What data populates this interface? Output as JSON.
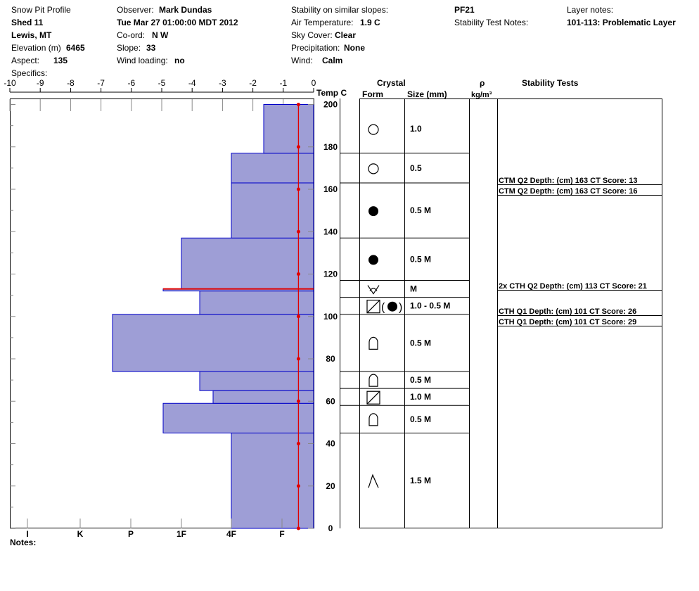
{
  "header": {
    "title": "Snow Pit Profile",
    "location": "Shed 11",
    "region": "Lewis, MT",
    "elevation_label": "Elevation (m)",
    "elevation": "6465",
    "aspect_label": "Aspect:",
    "aspect": "135",
    "specifics_label": "Specifics:",
    "observer_label": "Observer:",
    "observer": "Mark Dundas",
    "datetime": "Tue Mar 27 01:00:00 MDT 2012",
    "coord_label": "Co-ord:",
    "coord": "N  W",
    "slope_label": "Slope:",
    "slope": "33",
    "wind_loading_label": "Wind loading:",
    "wind_loading": "no",
    "stability_similar_label": "Stability on similar slopes:",
    "air_temp_label": "Air Temperature:",
    "air_temp": "1.9 C",
    "sky_label": "Sky Cover:",
    "sky": "Clear",
    "precip_label": "Precipitation:",
    "precip": "None",
    "wind_label": "Wind:",
    "wind": "Calm",
    "pit_id": "PF21",
    "stability_notes_label": "Stability Test Notes:",
    "layer_notes_label": "Layer notes:",
    "layer_notes": "101-113: Problematic Layer"
  },
  "columns": {
    "temp": "Temp C",
    "crystal": "Crystal",
    "form": "Form",
    "size": "Size (mm)",
    "rho": "ρ",
    "rho_units": "kg/m³",
    "stability": "Stability Tests"
  },
  "notes_label": "Notes:",
  "chart_data": {
    "type": "snow-profile",
    "temperature_axis": {
      "ticks": [
        -10,
        -9,
        -8,
        -7,
        -6,
        -5,
        -4,
        -3,
        -2,
        -1,
        0
      ],
      "range": [
        -10,
        0
      ]
    },
    "height_axis": {
      "ticks": [
        0,
        20,
        40,
        60,
        80,
        100,
        120,
        140,
        160,
        180,
        200
      ],
      "range": [
        0,
        200
      ],
      "unit": "cm"
    },
    "hardness_axis": {
      "scale": [
        "F",
        "4F",
        "1F",
        "P",
        "K",
        "I"
      ],
      "labels": [
        "I",
        "K",
        "P",
        "1F",
        "4F",
        "F"
      ]
    },
    "hardness_profile": [
      {
        "bottom": 0,
        "top": 45,
        "hardness": "4F"
      },
      {
        "bottom": 45,
        "top": 59,
        "hardness": "1F+"
      },
      {
        "bottom": 59,
        "top": 65,
        "hardness": "4F+"
      },
      {
        "bottom": 65,
        "top": 74,
        "hardness": "1F-"
      },
      {
        "bottom": 74,
        "top": 101,
        "hardness": "P+"
      },
      {
        "bottom": 101,
        "top": 112,
        "hardness": "1F-"
      },
      {
        "bottom": 112,
        "top": 113,
        "hardness": "1F+"
      },
      {
        "bottom": 113,
        "top": 137,
        "hardness": "1F"
      },
      {
        "bottom": 137,
        "top": 163,
        "hardness": "4F"
      },
      {
        "bottom": 163,
        "top": 177,
        "hardness": "4F"
      },
      {
        "bottom": 177,
        "top": 200,
        "hardness": "F+"
      }
    ],
    "temperature_profile": {
      "depth": [
        0,
        20,
        40,
        60,
        80,
        100,
        120,
        140,
        160,
        180,
        200
      ],
      "temp": [
        -0.5,
        -0.5,
        -0.5,
        -0.5,
        -0.5,
        -0.5,
        -0.5,
        -0.5,
        -0.5,
        -0.5,
        -0.5
      ]
    },
    "problem_layer_height": 113,
    "layers": [
      {
        "bottom": 177,
        "top": 200,
        "form": "circle-open",
        "size": "1.0"
      },
      {
        "bottom": 163,
        "top": 177,
        "form": "circle-open",
        "size": "0.5"
      },
      {
        "bottom": 137,
        "top": 163,
        "form": "circle-filled",
        "size": "0.5 M"
      },
      {
        "bottom": 117,
        "top": 137,
        "form": "circle-filled",
        "size": "0.5 M"
      },
      {
        "bottom": 109,
        "top": 117,
        "form": "surface-hoar",
        "size": "M"
      },
      {
        "bottom": 101,
        "top": 109,
        "form": "square-circle",
        "size": "1.0 - 0.5 M"
      },
      {
        "bottom": 74,
        "top": 101,
        "form": "arch",
        "size": "0.5 M"
      },
      {
        "bottom": 66,
        "top": 74,
        "form": "arch",
        "size": "0.5 M"
      },
      {
        "bottom": 58,
        "top": 66,
        "form": "square",
        "size": "1.0 M"
      },
      {
        "bottom": 45,
        "top": 58,
        "form": "arch",
        "size": "0.5 M"
      },
      {
        "bottom": 0,
        "top": 45,
        "form": "depth-hoar",
        "size": "1.5 M"
      }
    ],
    "stability_tests": [
      "CTM Q2 Depth: (cm) 163 CT Score: 13",
      "CTM Q2 Depth: (cm) 163 CT Score: 16",
      "2x CTH Q2 Depth: (cm) 113 CT Score: 21",
      "CTH Q1 Depth: (cm) 101 CT Score: 26",
      "CTH Q1 Depth: (cm) 101 CT Score: 29"
    ],
    "colors": {
      "hardness_fill": "#9e9ed6",
      "hardness_stroke": "#0000c8",
      "temperature": "#e00000"
    }
  }
}
